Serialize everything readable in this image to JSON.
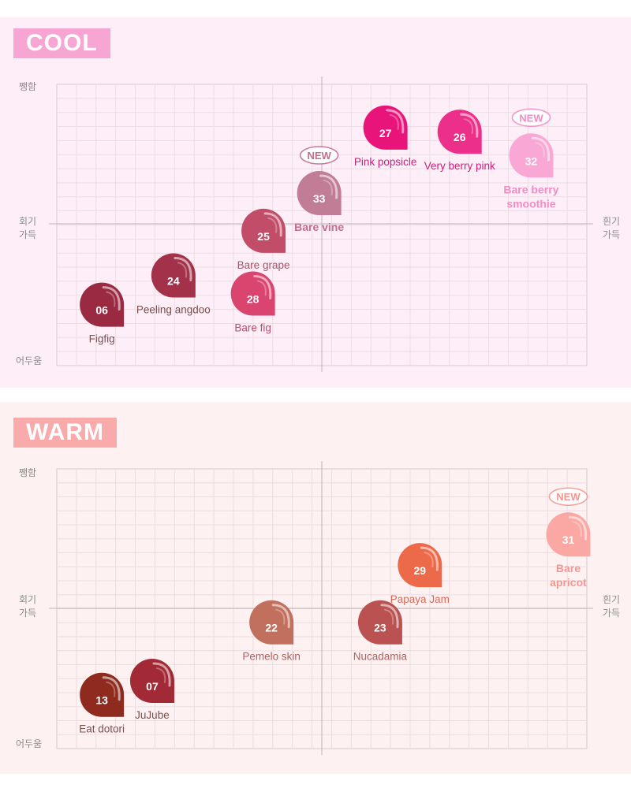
{
  "chart_data": [
    {
      "type": "scatter",
      "title": "COOL",
      "axis": {
        "x_left": "회기\n가득",
        "x_right": "흰기\n가득",
        "y_top": "쨍함",
        "y_bottom": "어두움"
      },
      "xlim": [
        -1,
        1
      ],
      "ylim": [
        -1,
        1
      ],
      "grid": true,
      "points": [
        {
          "id": "06",
          "name": "Figfig",
          "x": -0.83,
          "y": -0.58,
          "color": "#9a2942",
          "label_color": "#7a5050",
          "new": false,
          "bold": false
        },
        {
          "id": "24",
          "name": "Peeling angdoo",
          "x": -0.56,
          "y": -0.37,
          "color": "#a3314a",
          "label_color": "#7a5050",
          "new": false,
          "bold": false
        },
        {
          "id": "25",
          "name": "Bare grape",
          "x": -0.22,
          "y": -0.05,
          "color": "#c24d68",
          "label_color": "#a05a6a",
          "new": false,
          "bold": false
        },
        {
          "id": "28",
          "name": "Bare fig",
          "x": -0.26,
          "y": -0.5,
          "color": "#d9456f",
          "label_color": "#c04a6a",
          "new": false,
          "bold": false
        },
        {
          "id": "33",
          "name": "Bare vine",
          "x": -0.01,
          "y": 0.22,
          "color": "#c07d95",
          "label_color": "#c46e8e",
          "new": true,
          "bold": true
        },
        {
          "id": "27",
          "name": "Pink popsicle",
          "x": 0.24,
          "y": 0.69,
          "color": "#e8147a",
          "label_color": "#d0207a",
          "new": false,
          "bold": false
        },
        {
          "id": "26",
          "name": "Very berry pink",
          "x": 0.52,
          "y": 0.66,
          "color": "#ec2f88",
          "label_color": "#d0207a",
          "new": false,
          "bold": false
        },
        {
          "id": "32",
          "name": "Bare berry smoothie",
          "x": 0.79,
          "y": 0.49,
          "color": "#f9a7d4",
          "label_color": "#f48cc4",
          "new": true,
          "bold": true
        }
      ]
    },
    {
      "type": "scatter",
      "title": "WARM",
      "axis": {
        "x_left": "회기\n가득",
        "x_right": "흰기\n가득",
        "y_top": "쨍함",
        "y_bottom": "어두움"
      },
      "xlim": [
        -1,
        1
      ],
      "ylim": [
        -1,
        1
      ],
      "grid": true,
      "points": [
        {
          "id": "13",
          "name": "Eat dotori",
          "x": -0.83,
          "y": -0.62,
          "color": "#8e2a1e",
          "label_color": "#7a5050",
          "new": false,
          "bold": false
        },
        {
          "id": "07",
          "name": "JuJube",
          "x": -0.64,
          "y": -0.52,
          "color": "#a22a36",
          "label_color": "#7a5050",
          "new": false,
          "bold": false
        },
        {
          "id": "22",
          "name": "Pemelo skin",
          "x": -0.19,
          "y": -0.1,
          "color": "#c2705e",
          "label_color": "#b06060",
          "new": false,
          "bold": false
        },
        {
          "id": "23",
          "name": "Nucadamia",
          "x": 0.22,
          "y": -0.1,
          "color": "#bb5252",
          "label_color": "#b06060",
          "new": false,
          "bold": false
        },
        {
          "id": "29",
          "name": "Papaya Jam",
          "x": 0.37,
          "y": 0.31,
          "color": "#ec6a4a",
          "label_color": "#d66a5a",
          "new": false,
          "bold": false
        },
        {
          "id": "31",
          "name": "Bare apricot",
          "x": 0.93,
          "y": 0.53,
          "color": "#fba8a4",
          "label_color": "#f6958f",
          "new": true,
          "bold": true
        }
      ]
    }
  ],
  "new_badge": "NEW"
}
